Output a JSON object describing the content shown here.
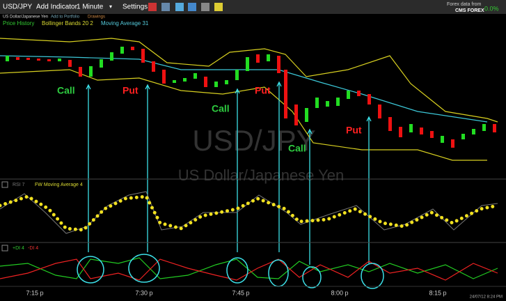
{
  "toolbar": {
    "symbol": "USD/JPY",
    "add_indicator": "Add Indicator",
    "interval": "1 Minute",
    "settings": "Settings"
  },
  "subheader": {
    "name": "US Dollar/Japanese Yen",
    "add_portfolio": "Add to Portfolio",
    "drawings": "Drawings"
  },
  "indicators": [
    "Price History",
    "Bollinger Bands 20 2",
    "Moving Average 31"
  ],
  "brand": {
    "line1": "Forex data from",
    "line2": "CMS FOREX",
    "change": "0.0%"
  },
  "watermark": {
    "symbol": "USD/JPY",
    "name": "US Dollar/Japanese Yen"
  },
  "annotations": [
    {
      "label": "Call",
      "color": "#2ecc40"
    },
    {
      "label": "Put",
      "color": "#ff2020"
    },
    {
      "label": "Call",
      "color": "#2ecc40"
    },
    {
      "label": "Put",
      "color": "#ff2020"
    },
    {
      "label": "Call",
      "color": "#2ecc40"
    },
    {
      "label": "Put",
      "color": "#ff2020"
    }
  ],
  "rsi_panel": {
    "rsi": "RSI 7",
    "ma": "FW Moving Average 4"
  },
  "di_panel": {
    "plus": "+DI 4",
    "minus": "-DI 4"
  },
  "x_axis": [
    "7:15 p",
    "7:30 p",
    "7:45 p",
    "8:00 p",
    "8:15 p"
  ],
  "timestamp": "24/07/12 8:24 PM"
}
